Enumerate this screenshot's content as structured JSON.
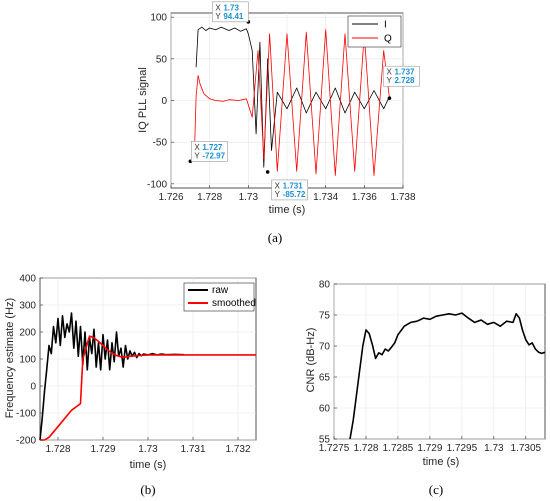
{
  "colors": {
    "black": "#000000",
    "red": "#ff0000",
    "datatip_blue": "#1a8fd6",
    "axis": "#262626",
    "grid": "#e6e6e6"
  },
  "chart_data": [
    {
      "id": "a",
      "caption": "(a)",
      "type": "line",
      "xlabel": "time (s)",
      "ylabel": "IQ PLL signal",
      "xlim": [
        1.726,
        1.738
      ],
      "ylim": [
        -105,
        105
      ],
      "xticks": [
        1.726,
        1.728,
        1.73,
        1.732,
        1.734,
        1.736,
        1.738
      ],
      "xtick_labels": [
        "1.726",
        "1.728",
        "1.73",
        "1.732",
        "1.734",
        "1.736",
        "1.738"
      ],
      "yticks": [
        -100,
        -50,
        0,
        50,
        100
      ],
      "ytick_labels": [
        "-100",
        "-50",
        "0",
        "50",
        "100"
      ],
      "grid": true,
      "legend_position": "top-right",
      "series": [
        {
          "name": "I",
          "color": "#000000",
          "x": [
            1.7273,
            1.7274,
            1.7276,
            1.7278,
            1.728,
            1.7283,
            1.7286,
            1.729,
            1.7293,
            1.7296,
            1.7299,
            1.73,
            1.7302,
            1.7304,
            1.7306,
            1.7308,
            1.731,
            1.7312,
            1.7315,
            1.732,
            1.7325,
            1.733,
            1.7335,
            1.734,
            1.7345,
            1.735,
            1.7355,
            1.736,
            1.7365,
            1.737,
            1.7373
          ],
          "y": [
            40,
            85,
            88,
            84,
            87,
            85,
            88,
            84,
            87,
            83,
            86,
            80,
            60,
            -40,
            70,
            -80,
            50,
            -60,
            10,
            -10,
            15,
            -15,
            10,
            -10,
            15,
            -15,
            10,
            -10,
            12,
            -10,
            5
          ]
        },
        {
          "name": "Q",
          "color": "#ff0000",
          "x": [
            1.7272,
            1.7273,
            1.7274,
            1.7275,
            1.7277,
            1.728,
            1.7283,
            1.7287,
            1.729,
            1.7295,
            1.7299,
            1.7302,
            1.7305,
            1.7308,
            1.7311,
            1.7315,
            1.732,
            1.7325,
            1.733,
            1.7335,
            1.734,
            1.7345,
            1.735,
            1.7355,
            1.736,
            1.7365,
            1.737,
            1.7373
          ],
          "y": [
            -72.97,
            5,
            30,
            20,
            8,
            2,
            0,
            -1,
            1,
            0,
            2,
            -20,
            60,
            -70,
            80,
            -85,
            80,
            -85,
            82,
            -88,
            85,
            -90,
            80,
            -85,
            80,
            -90,
            60,
            2.728
          ]
        }
      ],
      "datatips": [
        {
          "x_label": "X",
          "x_value": "1.73",
          "y_label": "Y",
          "y_value": "94.41",
          "x": 1.73,
          "y": 94.41
        },
        {
          "x_label": "X",
          "x_value": "1.727",
          "y_label": "Y",
          "y_value": "-72.97",
          "x": 1.727,
          "y": -72.97
        },
        {
          "x_label": "X",
          "x_value": "1.731",
          "y_label": "Y",
          "y_value": "-85.72",
          "x": 1.731,
          "y": -85.72
        },
        {
          "x_label": "X",
          "x_value": "1.737",
          "y_label": "Y",
          "y_value": "2.728",
          "x": 1.7373,
          "y": 2.728
        }
      ]
    },
    {
      "id": "b",
      "caption": "(b)",
      "type": "line",
      "xlabel": "time (s)",
      "ylabel": "Frequency estimate (Hz)",
      "xlim": [
        1.7276,
        1.7324
      ],
      "ylim": [
        -200,
        400
      ],
      "xticks": [
        1.728,
        1.729,
        1.73,
        1.731,
        1.732
      ],
      "xtick_labels": [
        "1.728",
        "1.729",
        "1.73",
        "1.731",
        "1.732"
      ],
      "yticks": [
        -200,
        -100,
        0,
        100,
        200,
        300,
        400
      ],
      "ytick_labels": [
        "-200",
        "-100",
        "0",
        "100",
        "200",
        "300",
        "400"
      ],
      "grid": true,
      "legend_position": "top-right",
      "series": [
        {
          "name": "raw",
          "color": "#000000",
          "x": [
            1.7276,
            1.72765,
            1.7277,
            1.72775,
            1.7278,
            1.72785,
            1.7279,
            1.72795,
            1.728,
            1.72805,
            1.7281,
            1.72815,
            1.7282,
            1.72825,
            1.7283,
            1.72835,
            1.7284,
            1.72845,
            1.7285,
            1.72855,
            1.7286,
            1.72865,
            1.7287,
            1.72875,
            1.7288,
            1.72885,
            1.7289,
            1.72895,
            1.729,
            1.72905,
            1.7291,
            1.72915,
            1.7292,
            1.72925,
            1.7293,
            1.72935,
            1.7294,
            1.72945,
            1.7295,
            1.72955,
            1.7296,
            1.72965,
            1.7297,
            1.72975,
            1.7298,
            1.72985,
            1.7299,
            1.73,
            1.7301,
            1.7302,
            1.7303,
            1.7304,
            1.7306,
            1.7308
          ],
          "y": [
            -200,
            -120,
            -20,
            60,
            150,
            120,
            220,
            160,
            250,
            150,
            260,
            180,
            230,
            200,
            270,
            140,
            240,
            110,
            220,
            80,
            200,
            60,
            180,
            120,
            210,
            70,
            160,
            60,
            190,
            100,
            170,
            60,
            160,
            90,
            200,
            110,
            140,
            70,
            150,
            100,
            130,
            110,
            125,
            105,
            120,
            112,
            118,
            115,
            120,
            115,
            118,
            116,
            117,
            116
          ]
        },
        {
          "name": "smoothed",
          "color": "#ff0000",
          "x": [
            1.7276,
            1.7277,
            1.7278,
            1.72805,
            1.7283,
            1.7285,
            1.72855,
            1.7287,
            1.7288,
            1.7289,
            1.729,
            1.7291,
            1.7292,
            1.7293,
            1.7294,
            1.7295,
            1.7296,
            1.7298,
            1.73,
            1.7305,
            1.731,
            1.732,
            1.7324
          ],
          "y": [
            -200,
            -200,
            -190,
            -140,
            -90,
            -65,
            100,
            185,
            178,
            165,
            150,
            135,
            122,
            113,
            108,
            107,
            110,
            113,
            115,
            115,
            115,
            115,
            115
          ]
        }
      ]
    },
    {
      "id": "c",
      "caption": "(c)",
      "type": "line",
      "xlabel": "time (s)",
      "ylabel": "CNR (dB-Hz)",
      "xlim": [
        1.7275,
        1.7308
      ],
      "ylim": [
        55,
        80
      ],
      "xticks": [
        1.7275,
        1.728,
        1.7285,
        1.729,
        1.7295,
        1.73,
        1.7305
      ],
      "xtick_labels": [
        "1.7275",
        "1.728",
        "1.7285",
        "1.729",
        "1.7295",
        "1.73",
        "1.7305"
      ],
      "yticks": [
        55,
        60,
        65,
        70,
        75,
        80
      ],
      "ytick_labels": [
        "55",
        "60",
        "65",
        "70",
        "75",
        "80"
      ],
      "grid": true,
      "series": [
        {
          "name": "",
          "color": "#000000",
          "x": [
            1.72775,
            1.7278,
            1.72785,
            1.7279,
            1.72795,
            1.728,
            1.72805,
            1.7281,
            1.72815,
            1.7282,
            1.72825,
            1.7283,
            1.72835,
            1.7284,
            1.72845,
            1.7285,
            1.72855,
            1.7286,
            1.7287,
            1.7288,
            1.7289,
            1.729,
            1.7291,
            1.7292,
            1.7293,
            1.7294,
            1.7295,
            1.7296,
            1.7297,
            1.7298,
            1.7299,
            1.73,
            1.7301,
            1.7302,
            1.7303,
            1.73035,
            1.7304,
            1.73045,
            1.7305,
            1.73055,
            1.7306,
            1.73065,
            1.7307,
            1.73075,
            1.7308
          ],
          "y": [
            55,
            58,
            62,
            66,
            70,
            72.6,
            72,
            70.2,
            68,
            68.9,
            68.6,
            69.5,
            69.2,
            69.8,
            70.5,
            71.8,
            72.5,
            73.2,
            73.8,
            74,
            74.5,
            74.3,
            74.8,
            75,
            75.2,
            75,
            75.3,
            74.5,
            73.8,
            74.2,
            73.5,
            73.8,
            73.2,
            74,
            73.8,
            75.2,
            74.5,
            72.5,
            71,
            70.2,
            70.5,
            69.5,
            69,
            68.8,
            69
          ]
        }
      ]
    }
  ]
}
